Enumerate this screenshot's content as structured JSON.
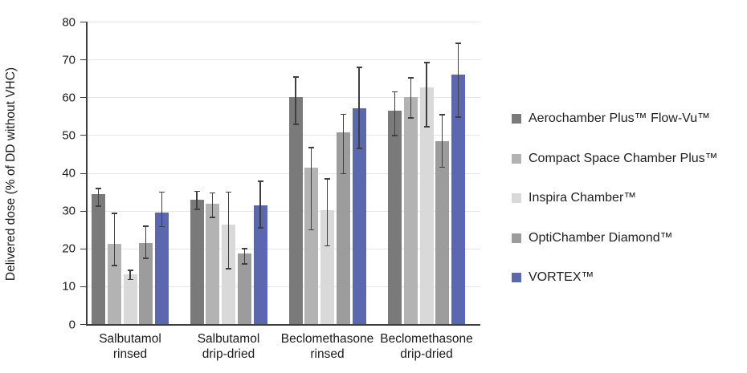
{
  "chart_data": {
    "type": "bar",
    "title": "",
    "ylabel": "Delivered dose (% of DD without VHC)",
    "xlabel": "",
    "ylim": [
      0,
      80
    ],
    "yticks": [
      0,
      10,
      20,
      30,
      40,
      50,
      60,
      70,
      80
    ],
    "grid": true,
    "legend_position": "right",
    "categories": [
      "Salbutamol\nrinsed",
      "Salbutamol\ndrip-dried",
      "Beclomethasone\nrinsed",
      "Beclomethasone\ndrip-dried"
    ],
    "series": [
      {
        "name": "Aerochamber Plus™ Flow-Vu™",
        "color": "#7a7a7a",
        "values": [
          34.3,
          32.8,
          60.0,
          56.4
        ],
        "err_low": [
          31.4,
          30.5,
          53.0,
          50.0
        ],
        "err_high": [
          36.0,
          35.3,
          65.5,
          61.6
        ]
      },
      {
        "name": "Compact Space Chamber Plus™",
        "color": "#b3b3b3",
        "values": [
          21.3,
          31.9,
          41.4,
          60.0
        ],
        "err_low": [
          15.6,
          28.4,
          25.1,
          54.7
        ],
        "err_high": [
          29.4,
          34.9,
          46.8,
          65.3
        ]
      },
      {
        "name": "Inspira Chamber™",
        "color": "#d9d9d9",
        "values": [
          13.1,
          26.3,
          30.2,
          62.6
        ],
        "err_low": [
          11.9,
          14.8,
          20.8,
          52.4
        ],
        "err_high": [
          14.4,
          35.1,
          38.6,
          69.3
        ]
      },
      {
        "name": "OptiChamber Diamond™",
        "color": "#9c9c9c",
        "values": [
          21.4,
          18.6,
          50.7,
          48.4
        ],
        "err_low": [
          17.6,
          16.1,
          39.9,
          41.6
        ],
        "err_high": [
          26.1,
          20.1,
          55.6,
          55.5
        ]
      },
      {
        "name": "VORTEX™",
        "color": "#5b68b0",
        "values": [
          29.4,
          31.4,
          57.0,
          66.0
        ],
        "err_low": [
          25.9,
          25.6,
          46.6,
          54.9
        ],
        "err_high": [
          35.1,
          37.9,
          68.1,
          74.4
        ]
      }
    ],
    "colors": {
      "axis": "#3d3d3d",
      "grid": "#e4e5ea",
      "error_bar": "#3f3f3f",
      "text": "#1a1a1a",
      "background": "#ffffff"
    }
  }
}
